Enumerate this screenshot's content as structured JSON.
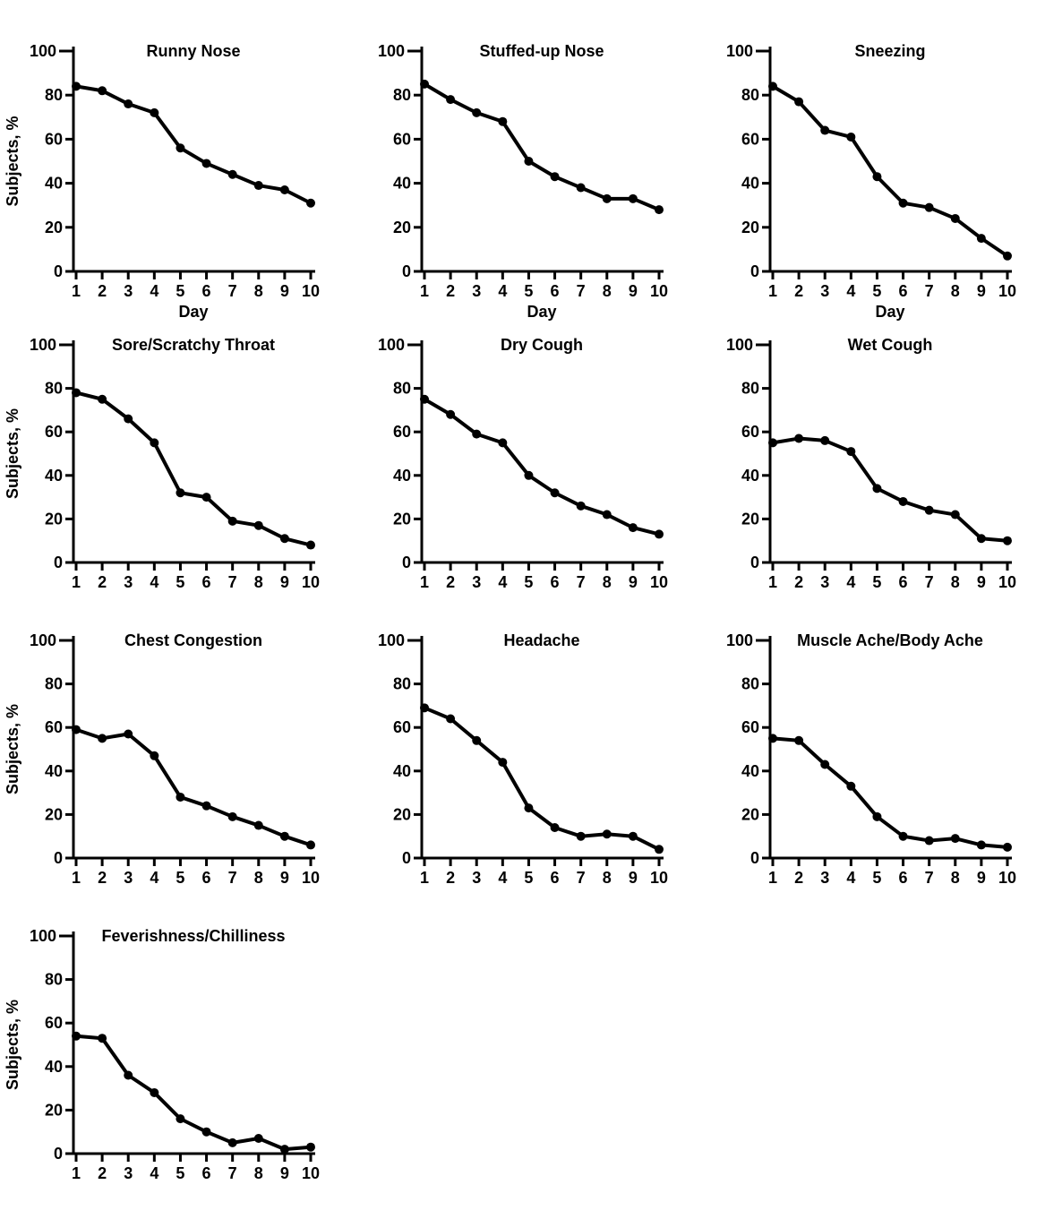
{
  "page": {
    "background": "#ffffff",
    "ink": "#000000",
    "figure_description": "Grid of ten line charts showing percentage of subjects reporting each cold symptom by day"
  },
  "chart_data": [
    {
      "type": "line",
      "title": "Runny Nose",
      "xlabel": "Day",
      "ylabel": "Subjects, %",
      "x": [
        1,
        2,
        3,
        4,
        5,
        6,
        7,
        8,
        9,
        10
      ],
      "values": [
        84,
        82,
        76,
        72,
        56,
        49,
        44,
        39,
        37,
        31
      ],
      "ylim": [
        0,
        100
      ],
      "yticks": [
        0,
        20,
        40,
        60,
        80,
        100
      ],
      "line_color": "#000000",
      "marker": "filled-circle",
      "grid": false,
      "legend": "none"
    },
    {
      "type": "line",
      "title": "Stuffed-up Nose",
      "xlabel": "Day",
      "ylabel": "",
      "x": [
        1,
        2,
        3,
        4,
        5,
        6,
        7,
        8,
        9,
        10
      ],
      "values": [
        85,
        78,
        72,
        68,
        50,
        43,
        38,
        33,
        33,
        28
      ],
      "ylim": [
        0,
        100
      ],
      "yticks": [
        0,
        20,
        40,
        60,
        80,
        100
      ],
      "line_color": "#000000",
      "marker": "filled-circle",
      "grid": false,
      "legend": "none"
    },
    {
      "type": "line",
      "title": "Sneezing",
      "xlabel": "Day",
      "ylabel": "",
      "x": [
        1,
        2,
        3,
        4,
        5,
        6,
        7,
        8,
        9,
        10
      ],
      "values": [
        84,
        77,
        64,
        61,
        43,
        31,
        29,
        24,
        15,
        7
      ],
      "ylim": [
        0,
        100
      ],
      "yticks": [
        0,
        20,
        40,
        60,
        80,
        100
      ],
      "line_color": "#000000",
      "marker": "filled-circle",
      "grid": false,
      "legend": "none"
    },
    {
      "type": "line",
      "title": "Sore/Scratchy Throat",
      "xlabel": "",
      "ylabel": "Subjects, %",
      "x": [
        1,
        2,
        3,
        4,
        5,
        6,
        7,
        8,
        9,
        10
      ],
      "values": [
        78,
        75,
        66,
        55,
        32,
        30,
        19,
        17,
        11,
        8
      ],
      "ylim": [
        0,
        100
      ],
      "yticks": [
        0,
        20,
        40,
        60,
        80,
        100
      ],
      "line_color": "#000000",
      "marker": "filled-circle",
      "grid": false,
      "legend": "none"
    },
    {
      "type": "line",
      "title": "Dry Cough",
      "xlabel": "",
      "ylabel": "",
      "x": [
        1,
        2,
        3,
        4,
        5,
        6,
        7,
        8,
        9,
        10
      ],
      "values": [
        75,
        68,
        59,
        55,
        40,
        32,
        26,
        22,
        16,
        13
      ],
      "ylim": [
        0,
        100
      ],
      "yticks": [
        0,
        20,
        40,
        60,
        80,
        100
      ],
      "line_color": "#000000",
      "marker": "filled-circle",
      "grid": false,
      "legend": "none"
    },
    {
      "type": "line",
      "title": "Wet Cough",
      "xlabel": "",
      "ylabel": "",
      "x": [
        1,
        2,
        3,
        4,
        5,
        6,
        7,
        8,
        9,
        10
      ],
      "values": [
        55,
        57,
        56,
        51,
        34,
        28,
        24,
        22,
        11,
        10
      ],
      "ylim": [
        0,
        100
      ],
      "yticks": [
        0,
        20,
        40,
        60,
        80,
        100
      ],
      "line_color": "#000000",
      "marker": "filled-circle",
      "grid": false,
      "legend": "none"
    },
    {
      "type": "line",
      "title": "Chest Congestion",
      "xlabel": "",
      "ylabel": "Subjects, %",
      "x": [
        1,
        2,
        3,
        4,
        5,
        6,
        7,
        8,
        9,
        10
      ],
      "values": [
        59,
        55,
        57,
        47,
        28,
        24,
        19,
        15,
        10,
        6
      ],
      "ylim": [
        0,
        100
      ],
      "yticks": [
        0,
        20,
        40,
        60,
        80,
        100
      ],
      "line_color": "#000000",
      "marker": "filled-circle",
      "grid": false,
      "legend": "none"
    },
    {
      "type": "line",
      "title": "Headache",
      "xlabel": "",
      "ylabel": "",
      "x": [
        1,
        2,
        3,
        4,
        5,
        6,
        7,
        8,
        9,
        10
      ],
      "values": [
        69,
        64,
        54,
        44,
        23,
        14,
        10,
        11,
        10,
        4
      ],
      "ylim": [
        0,
        100
      ],
      "yticks": [
        0,
        20,
        40,
        60,
        80,
        100
      ],
      "line_color": "#000000",
      "marker": "filled-circle",
      "grid": false,
      "legend": "none"
    },
    {
      "type": "line",
      "title": "Muscle Ache/Body Ache",
      "xlabel": "",
      "ylabel": "",
      "x": [
        1,
        2,
        3,
        4,
        5,
        6,
        7,
        8,
        9,
        10
      ],
      "values": [
        55,
        54,
        43,
        33,
        19,
        10,
        8,
        9,
        6,
        5
      ],
      "ylim": [
        0,
        100
      ],
      "yticks": [
        0,
        20,
        40,
        60,
        80,
        100
      ],
      "line_color": "#000000",
      "marker": "filled-circle",
      "grid": false,
      "legend": "none"
    },
    {
      "type": "line",
      "title": "Feverishness/Chilliness",
      "xlabel": "",
      "ylabel": "Subjects, %",
      "x": [
        1,
        2,
        3,
        4,
        5,
        6,
        7,
        8,
        9,
        10
      ],
      "values": [
        54,
        53,
        36,
        28,
        16,
        10,
        5,
        7,
        2,
        3
      ],
      "ylim": [
        0,
        100
      ],
      "yticks": [
        0,
        20,
        40,
        60,
        80,
        100
      ],
      "line_color": "#000000",
      "marker": "filled-circle",
      "grid": false,
      "legend": "none"
    }
  ]
}
